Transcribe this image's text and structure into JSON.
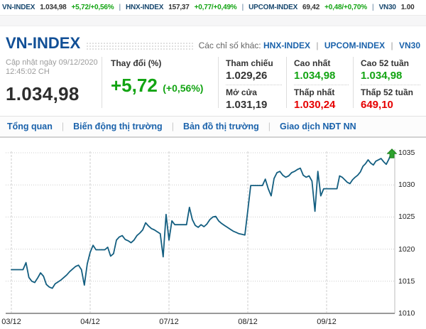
{
  "colors": {
    "green": "#13a413",
    "red": "#e60000",
    "link_blue": "#1a62ab",
    "title_blue": "#114f96"
  },
  "ticker": {
    "separator": "|",
    "items": [
      {
        "label": "VN-INDEX",
        "value": "1.034,98",
        "change": "+5,72/+0,56%"
      },
      {
        "label": "HNX-INDEX",
        "value": "157,37",
        "change": "+0,77/+0,49%"
      },
      {
        "label": "UPCOM-INDEX",
        "value": "69,42",
        "change": "+0,48/+0,70%"
      },
      {
        "label": "VN30",
        "value": "1.00",
        "change": ""
      }
    ]
  },
  "header": {
    "title": "VN-INDEX",
    "other_indices_label": "Các chỉ số khác:",
    "links": [
      "HNX-INDEX",
      "UPCOM-INDEX",
      "VN30"
    ],
    "link_separator": "|"
  },
  "overview": {
    "updated_line1": "Cập nhật ngày 09/12/2020",
    "updated_line2": "12:45:02 CH",
    "price": "1.034,98",
    "change_label": "Thay đổi (%)",
    "change_value": "+5,72",
    "change_percent": "(+0,56%)",
    "stats": [
      {
        "label": "Tham chiếu",
        "value": "1.029,26",
        "color": "dark"
      },
      {
        "label": "Mở cửa",
        "value": "1.031,19",
        "color": "dark"
      },
      {
        "label": "Cao nhất",
        "value": "1.034,98",
        "color": "green"
      },
      {
        "label": "Thấp nhất",
        "value": "1.030,24",
        "color": "red"
      },
      {
        "label": "Cao 52 tuần",
        "value": "1.034,98",
        "color": "green"
      },
      {
        "label": "Thấp 52 tuần",
        "value": "649,10",
        "color": "red"
      }
    ]
  },
  "tabs": {
    "separator": "|",
    "items": [
      {
        "label": "Tổng quan"
      },
      {
        "label": "Biến động thị trường"
      },
      {
        "label": "Bản đồ thị trường"
      },
      {
        "label": "Giao dịch NĐT NN"
      }
    ]
  },
  "chart_data": {
    "type": "line",
    "x_labels": [
      "03/12",
      "04/12",
      "07/12",
      "08/12",
      "09/12"
    ],
    "y_ticks": [
      1010,
      1015,
      1020,
      1025,
      1030,
      1035
    ],
    "y_range": [
      1010,
      1035
    ],
    "last_value": 1034.98,
    "line_color": "#135e80",
    "grid_color": "#cccccc",
    "axis_color": "#9a9a9a",
    "marker_color": "#2da12d",
    "day_starts": [
      0,
      27,
      54,
      81,
      108
    ],
    "values": [
      1016.8,
      1016.8,
      1016.8,
      1016.8,
      1016.8,
      1017.9,
      1015.6,
      1015.0,
      1014.8,
      1015.5,
      1016.3,
      1015.8,
      1014.5,
      1014.1,
      1013.9,
      1014.6,
      1014.9,
      1015.2,
      1015.6,
      1016.0,
      1016.5,
      1016.9,
      1017.3,
      1017.5,
      1016.8,
      1014.4,
      1017.7,
      1019.5,
      1020.6,
      1019.9,
      1019.9,
      1019.9,
      1019.9,
      1020.3,
      1018.9,
      1019.3,
      1021.4,
      1021.9,
      1022.1,
      1021.5,
      1021.3,
      1021.0,
      1021.4,
      1022.1,
      1022.5,
      1023.0,
      1024.1,
      1023.6,
      1023.2,
      1023.0,
      1022.7,
      1022.4,
      1018.8,
      1025.4,
      1021.4,
      1024.4,
      1023.8,
      1023.8,
      1023.8,
      1023.8,
      1023.8,
      1026.5,
      1024.6,
      1023.7,
      1023.4,
      1023.8,
      1023.5,
      1023.9,
      1024.6,
      1025.0,
      1025.1,
      1024.4,
      1024.0,
      1023.7,
      1023.4,
      1023.1,
      1022.8,
      1022.6,
      1022.4,
      1022.3,
      1022.2,
      1026.0,
      1029.9,
      1029.9,
      1029.9,
      1029.9,
      1029.9,
      1030.9,
      1029.4,
      1028.3,
      1031.0,
      1031.9,
      1032.1,
      1031.5,
      1031.2,
      1031.4,
      1031.9,
      1032.1,
      1032.4,
      1032.6,
      1031.5,
      1031.2,
      1031.4,
      1030.6,
      1025.9,
      1032.1,
      1028.3,
      1029.4,
      1029.4,
      1029.4,
      1029.4,
      1029.4,
      1029.4,
      1031.4,
      1031.2,
      1030.8,
      1030.4,
      1030.2,
      1030.8,
      1031.2,
      1031.5,
      1032.0,
      1032.9,
      1033.3,
      1033.9,
      1033.4,
      1033.1,
      1033.7,
      1033.9,
      1034.1,
      1033.6,
      1033.2,
      1034.0,
      1034.98
    ]
  }
}
